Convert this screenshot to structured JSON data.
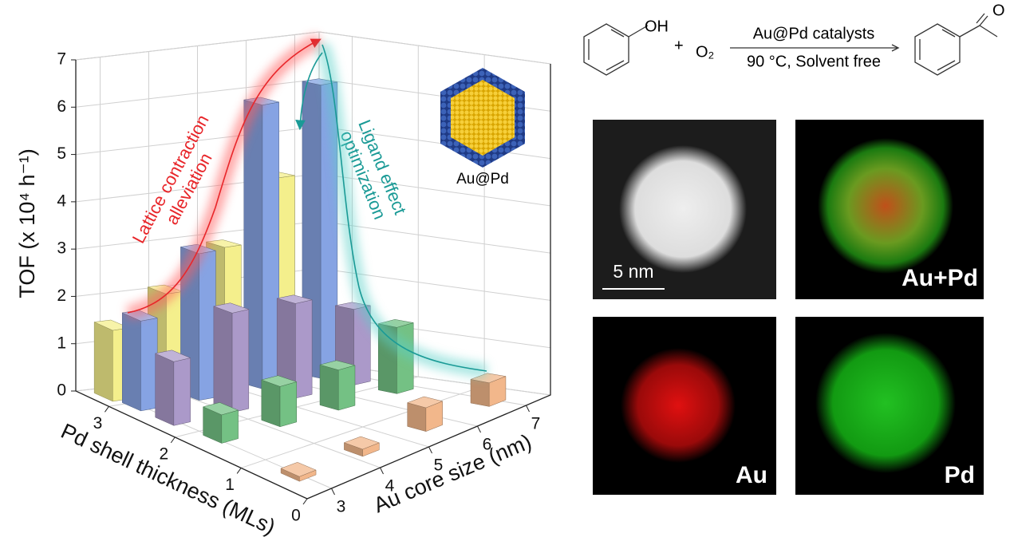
{
  "chart_data": {
    "type": "bar3d",
    "zlabel": "TOF (x 10⁴ h⁻¹)",
    "xlabel": "Au core size (nm)",
    "ylabel": "Pd shell thickness (MLs)",
    "xlim": [
      2.5,
      7.5
    ],
    "xticks": [
      3,
      4,
      5,
      6,
      7
    ],
    "ylim": [
      0,
      3.5
    ],
    "yticks": [
      0,
      1,
      2,
      3
    ],
    "zlim": [
      0,
      7
    ],
    "zticks": [
      0,
      1,
      2,
      3,
      4,
      5,
      6,
      7
    ],
    "grid": true,
    "series": [
      {
        "color": "#f4ef8c",
        "shell": 3.25,
        "x": [
          2.9,
          4.0,
          5.2,
          6.3
        ],
        "values": [
          1.5,
          2.1,
          2.9,
          4.2
        ]
      },
      {
        "color": "#86a3e3",
        "shell": 2.9,
        "x": [
          3.0,
          4.2,
          5.5,
          6.7
        ],
        "values": [
          1.9,
          3.1,
          6.0,
          6.2
        ]
      },
      {
        "color": "#ab99c9",
        "shell": 2.4,
        "x": [
          3.0,
          4.2,
          5.5,
          6.7
        ],
        "values": [
          1.35,
          2.1,
          2.0,
          1.6
        ]
      },
      {
        "color": "#74c184",
        "shell": 1.75,
        "x": [
          3.1,
          4.3,
          5.5,
          6.7
        ],
        "values": [
          0.6,
          0.85,
          0.85,
          1.4
        ]
      },
      {
        "color": "#f2b78b",
        "shell": 0.5,
        "x": [
          3.0,
          4.3,
          5.6,
          6.9
        ],
        "values": [
          0.1,
          0.15,
          0.5,
          0.5
        ]
      }
    ],
    "annotations": [
      {
        "lines": [
          "Lattice contraction",
          "alleviation"
        ],
        "color": "#e8262a"
      },
      {
        "lines": [
          "Ligand effect",
          "optimization"
        ],
        "color": "#1a9a96"
      }
    ],
    "inset_label": "Au@Pd"
  },
  "scheme": {
    "oh": "OH",
    "plus": "+",
    "oxygen": "O₂",
    "catalyst": "Au@Pd catalysts",
    "conditions": "90 °C, Solvent free",
    "ketone_o": "O"
  },
  "panels": [
    {
      "label": "5 nm"
    },
    {
      "label": "Au+Pd"
    },
    {
      "label": "Au"
    },
    {
      "label": "Pd"
    }
  ]
}
